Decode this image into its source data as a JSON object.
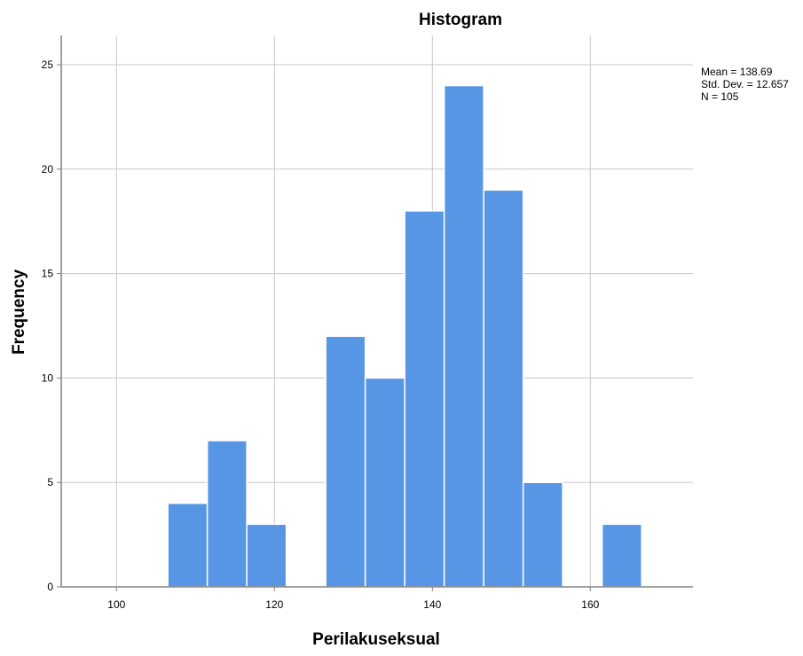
{
  "chart_data": {
    "type": "histogram",
    "title": "Histogram",
    "xlabel": "Perilakuseksual",
    "ylabel": "Frequency",
    "xlim": [
      93,
      173
    ],
    "ylim": [
      0,
      26.4
    ],
    "x_ticks": [
      100,
      120,
      140,
      160
    ],
    "y_ticks": [
      0,
      5,
      10,
      15,
      20,
      25
    ],
    "grid": true,
    "bar_color": "#5796e5",
    "bins": [
      {
        "start": 106.5,
        "end": 111.5,
        "count": 4
      },
      {
        "start": 111.5,
        "end": 116.5,
        "count": 7
      },
      {
        "start": 116.5,
        "end": 121.5,
        "count": 3
      },
      {
        "start": 126.5,
        "end": 131.5,
        "count": 12
      },
      {
        "start": 131.5,
        "end": 136.5,
        "count": 10
      },
      {
        "start": 136.5,
        "end": 141.5,
        "count": 18
      },
      {
        "start": 141.5,
        "end": 146.5,
        "count": 24
      },
      {
        "start": 146.5,
        "end": 151.5,
        "count": 19
      },
      {
        "start": 151.5,
        "end": 156.5,
        "count": 5
      },
      {
        "start": 161.5,
        "end": 166.5,
        "count": 3
      }
    ],
    "stats": {
      "mean": "Mean = 138.69",
      "std_dev": "Std. Dev. = 12.657",
      "n": "N = 105"
    }
  }
}
